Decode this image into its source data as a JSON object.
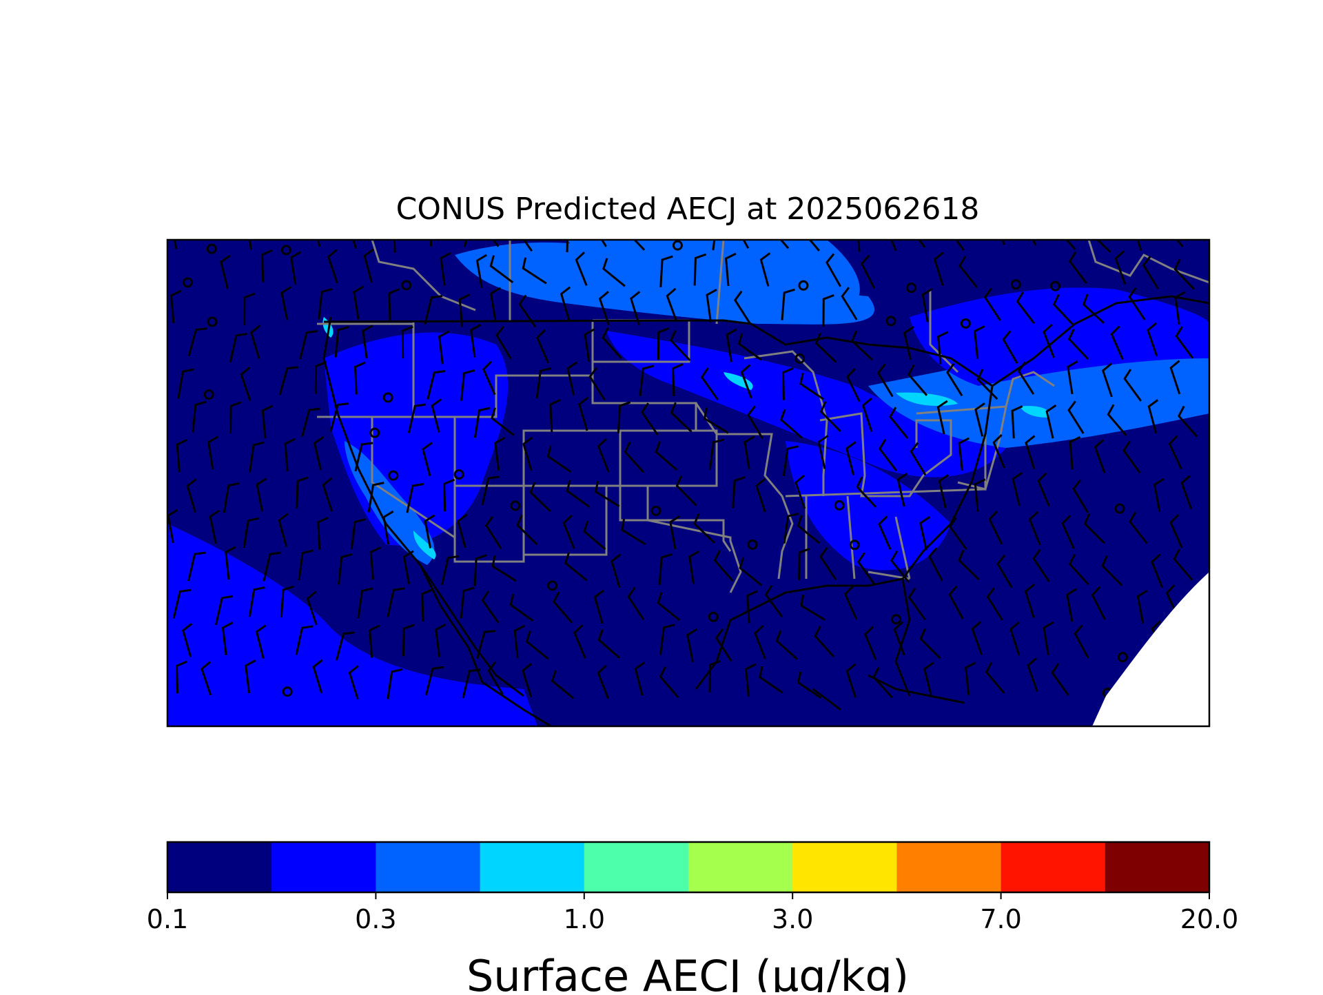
{
  "title": "CONUS Predicted AECJ at 2025062618",
  "colorbar": {
    "label": "Surface AECJ (μg/kg)",
    "tick_labels": [
      "0.1",
      "0.3",
      "1.0",
      "3.0",
      "7.0",
      "20.0"
    ],
    "tick_values": [
      0.1,
      0.3,
      1.0,
      3.0,
      7.0,
      20.0
    ],
    "levels": [
      0.1,
      0.2,
      0.3,
      0.5,
      1.0,
      2.0,
      3.0,
      5.0,
      7.0,
      10.0,
      20.0
    ],
    "colors": [
      "#00007f",
      "#0000ff",
      "#0062ff",
      "#00d5ff",
      "#4dffaa",
      "#a5ff4d",
      "#ffe500",
      "#ff7f00",
      "#ff1400",
      "#7f0000"
    ]
  },
  "map": {
    "region": "CONUS",
    "background_color": "#00007f",
    "boundary_color": "#808080",
    "coast_color": "#000000",
    "barb_color": "#000000"
  }
}
